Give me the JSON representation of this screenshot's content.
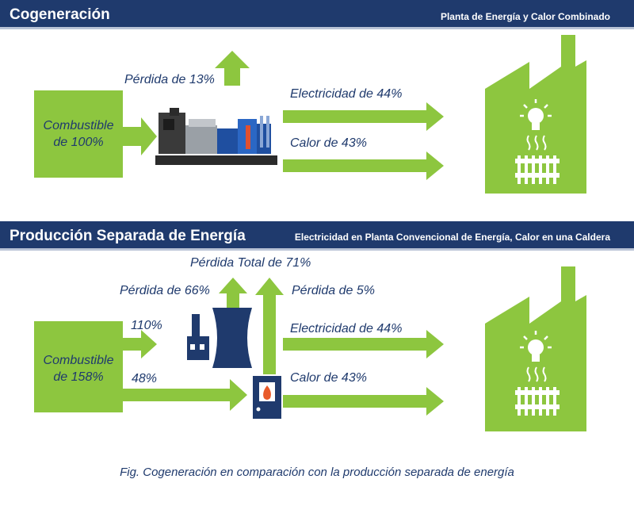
{
  "cogeneration": {
    "title": "Cogeneración",
    "subtitle": "Planta de Energía y Calor Combinado",
    "fuel_line1": "Combustible",
    "fuel_line2": "de 100%",
    "loss": "Pérdida de 13%",
    "electricity": "Electricidad de 44%",
    "heat": "Calor de 43%"
  },
  "separate": {
    "title": "Producción Separada de Energía",
    "subtitle": "Electricidad en Planta Convencional de Energía, Calor en una Caldera",
    "fuel_line1": "Combustible",
    "fuel_line2": "de 158%",
    "total_loss": "Pérdida Total de 71%",
    "plant_loss": "Pérdida de 66%",
    "boiler_loss": "Pérdida de 5%",
    "to_plant": "110%",
    "to_boiler": "48%",
    "electricity": "Electricidad de 44%",
    "heat": "Calor de 43%"
  },
  "caption": "Fig. Cogeneración en comparación con la producción separada de energía",
  "colors": {
    "green": "#8dc63f",
    "navy": "#1f3a6d",
    "white": "#ffffff"
  },
  "icons": [
    "factory-icon",
    "lightbulb-icon",
    "radiator-icon",
    "generator-icon",
    "power-plant-icon",
    "boiler-icon"
  ]
}
